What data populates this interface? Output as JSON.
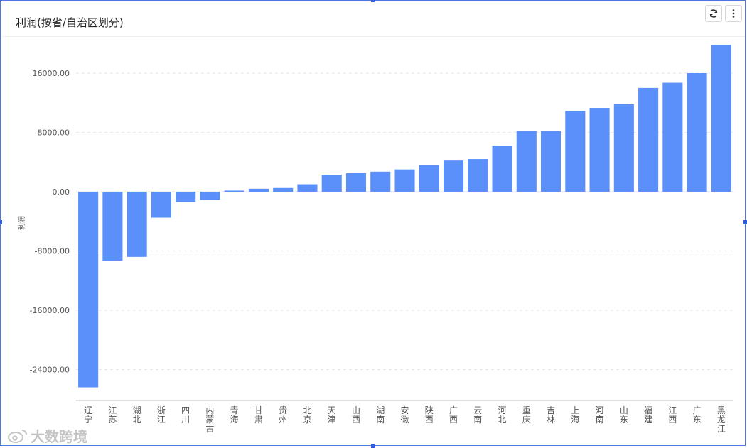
{
  "title": "利润(按省/自治区划分)",
  "toolbar": {
    "refresh_icon": "refresh-icon",
    "more_icon": "more-vertical-icon"
  },
  "watermark": {
    "text": "大数跨境",
    "icon": "weibo-logo-icon"
  },
  "colors": {
    "bar": "#5b8ff9",
    "grid": "#e6e6e6",
    "axis": "#bfbfbf",
    "tick_text": "#555555"
  },
  "chart_data": {
    "type": "bar",
    "title": "利润(按省/自治区划分)",
    "xlabel": "",
    "ylabel": "利润",
    "ylim": [
      -28000,
      20000
    ],
    "yticks": [
      -24000,
      -16000,
      -8000,
      0,
      8000,
      16000
    ],
    "ytick_labels": [
      "-24000.00",
      "-16000.00",
      "-8000.00",
      "0.00",
      "8000.00",
      "16000.00"
    ],
    "grid": true,
    "categories": [
      "辽宁",
      "江苏",
      "湖北",
      "浙江",
      "四川",
      "内蒙古",
      "青海",
      "甘肃",
      "贵州",
      "北京",
      "天津",
      "山西",
      "湖南",
      "安徽",
      "陕西",
      "广西",
      "云南",
      "河北",
      "重庆",
      "吉林",
      "上海",
      "河南",
      "山东",
      "福建",
      "江西",
      "广东",
      "黑龙江"
    ],
    "values": [
      -26400,
      -9300,
      -8800,
      -3500,
      -1400,
      -1100,
      150,
      400,
      500,
      1000,
      2300,
      2500,
      2700,
      3000,
      3600,
      4200,
      4400,
      6200,
      8200,
      8200,
      10900,
      11300,
      11800,
      14000,
      14700,
      16000,
      19800
    ]
  }
}
